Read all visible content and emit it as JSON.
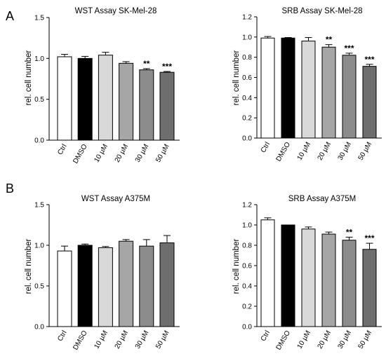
{
  "panel_labels": [
    "A",
    "B"
  ],
  "colors": {
    "Ctrl": "#ffffff",
    "DMSO": "#000000",
    "10 µM": "#d9d9d9",
    "20 µM": "#a6a6a6",
    "30 µM": "#8c8c8c",
    "50 µM": "#6e6e6e"
  },
  "chart_data": [
    {
      "type": "bar",
      "title": "WST Assay SK-Mel-28",
      "ylabel": "rel. cell number",
      "categories": [
        "Ctrl",
        "DMSO",
        "10 µM",
        "20 µM",
        "30 µM",
        "50 µM"
      ],
      "values": [
        1.02,
        1.0,
        1.04,
        0.94,
        0.86,
        0.83
      ],
      "errors": [
        0.03,
        0.025,
        0.035,
        0.02,
        0.015,
        0.01
      ],
      "significance": [
        "",
        "",
        "",
        "",
        "**",
        "***"
      ],
      "ylim": [
        0,
        1.5
      ],
      "yticks": [
        "0.0",
        "0.5",
        "1.0",
        "1.5"
      ]
    },
    {
      "type": "bar",
      "title": "SRB Assay SK-Mel-28",
      "ylabel": "rel. cell number",
      "categories": [
        "Ctrl",
        "DMSO",
        "10 µM",
        "20 µM",
        "30 µM",
        "50 µM"
      ],
      "values": [
        0.99,
        0.99,
        0.96,
        0.9,
        0.82,
        0.71
      ],
      "errors": [
        0.015,
        0.005,
        0.035,
        0.025,
        0.02,
        0.02
      ],
      "significance": [
        "",
        "",
        "",
        "**",
        "***",
        "***"
      ],
      "ylim": [
        0,
        1.2
      ],
      "yticks": [
        "0.0",
        "0.2",
        "0.4",
        "0.6",
        "0.8",
        "1.0",
        "1.2"
      ]
    },
    {
      "type": "bar",
      "title": "WST Assay A375M",
      "ylabel": "rel. cell number",
      "categories": [
        "Ctrl",
        "DMSO",
        "10 µM",
        "20 µM",
        "30 µM",
        "50 µM"
      ],
      "values": [
        0.93,
        1.0,
        0.97,
        1.05,
        0.99,
        1.03
      ],
      "errors": [
        0.06,
        0.015,
        0.015,
        0.02,
        0.08,
        0.09
      ],
      "significance": [
        "",
        "",
        "",
        "",
        "",
        ""
      ],
      "ylim": [
        0,
        1.5
      ],
      "yticks": [
        "0.0",
        "0.5",
        "1.0",
        "1.5"
      ]
    },
    {
      "type": "bar",
      "title": "SRB Assay A375M",
      "ylabel": "rel. cell number",
      "categories": [
        "Ctrl",
        "DMSO",
        "10 µM",
        "20 µM",
        "30 µM",
        "50 µM"
      ],
      "values": [
        1.05,
        1.0,
        0.96,
        0.91,
        0.85,
        0.76
      ],
      "errors": [
        0.02,
        0.0,
        0.02,
        0.02,
        0.03,
        0.06
      ],
      "significance": [
        "",
        "",
        "",
        "",
        "**",
        "***"
      ],
      "ylim": [
        0,
        1.2
      ],
      "yticks": [
        "0.0",
        "0.2",
        "0.4",
        "0.6",
        "0.8",
        "1.0",
        "1.2"
      ]
    }
  ]
}
